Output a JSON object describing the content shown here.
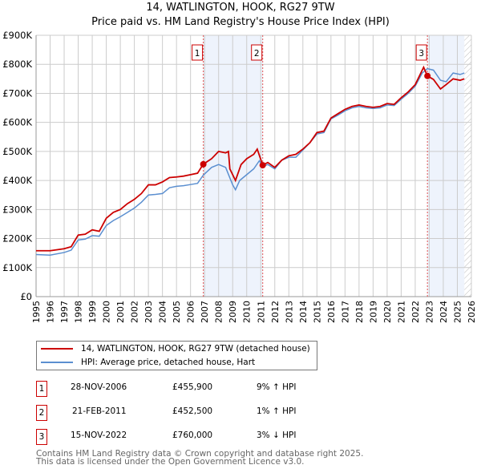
{
  "chart_data": {
    "type": "line",
    "title": "14, WATLINGTON, HOOK, RG27 9TW",
    "subtitle": "Price paid vs. HM Land Registry's House Price Index (HPI)",
    "xlim": [
      1995,
      2026
    ],
    "ylim": [
      0,
      900000
    ],
    "x_ticks": [
      "1995",
      "1996",
      "1997",
      "1998",
      "1999",
      "2000",
      "2001",
      "2002",
      "2003",
      "2004",
      "2005",
      "2006",
      "2007",
      "2008",
      "2009",
      "2010",
      "2011",
      "2012",
      "2013",
      "2014",
      "2015",
      "2016",
      "2017",
      "2018",
      "2019",
      "2020",
      "2021",
      "2022",
      "2023",
      "2024",
      "2025",
      "2026"
    ],
    "y_ticks": [
      {
        "v": 0,
        "label": "£0"
      },
      {
        "v": 100000,
        "label": "£100K"
      },
      {
        "v": 200000,
        "label": "£200K"
      },
      {
        "v": 300000,
        "label": "£300K"
      },
      {
        "v": 400000,
        "label": "£400K"
      },
      {
        "v": 500000,
        "label": "£500K"
      },
      {
        "v": 600000,
        "label": "£600K"
      },
      {
        "v": 700000,
        "label": "£700K"
      },
      {
        "v": 800000,
        "label": "£800K"
      },
      {
        "v": 900000,
        "label": "£900K"
      }
    ],
    "grid": true,
    "shaded_ranges": [
      [
        2006.9,
        2011.14
      ],
      [
        2022.87,
        2025.5
      ]
    ],
    "hatched_from": 2025.5,
    "series": [
      {
        "name": "14, WATLINGTON, HOOK, RG27 9TW (detached house)",
        "color": "#cc0000",
        "x": [
          1995,
          1996,
          1997,
          1997.5,
          1998,
          1998.5,
          1999,
          1999.5,
          2000,
          2000.5,
          2001,
          2001.5,
          2002,
          2002.5,
          2003,
          2003.5,
          2004,
          2004.5,
          2005,
          2005.5,
          2006,
          2006.5,
          2006.9,
          2007.5,
          2008,
          2008.5,
          2008.7,
          2008.8,
          2009.2,
          2009.6,
          2010,
          2010.5,
          2010.75,
          2011.14,
          2011.5,
          2012,
          2012.5,
          2013,
          2013.5,
          2014,
          2014.5,
          2015,
          2015.5,
          2016,
          2016.5,
          2017,
          2017.5,
          2018,
          2018.5,
          2019,
          2019.5,
          2020,
          2020.5,
          2021,
          2021.5,
          2022,
          2022.6,
          2022.87,
          2023.3,
          2023.8,
          2024.2,
          2024.7,
          2025.2,
          2025.5
        ],
        "y": [
          158,
          158,
          165,
          172,
          212,
          215,
          230,
          225,
          270,
          290,
          300,
          320,
          335,
          355,
          385,
          385,
          395,
          410,
          412,
          415,
          420,
          425,
          455.9,
          475,
          500,
          495,
          500,
          440,
          400,
          455,
          475,
          490,
          508,
          452.5,
          462,
          445,
          470,
          485,
          490,
          508,
          530,
          565,
          570,
          615,
          630,
          645,
          655,
          660,
          655,
          652,
          655,
          665,
          662,
          685,
          705,
          730,
          790,
          760,
          748,
          715,
          730,
          750,
          745,
          750
        ]
      },
      {
        "name": "HPI: Average price, detached house, Hart",
        "color": "#5b8fd0",
        "x": [
          1995,
          1996,
          1997,
          1997.5,
          1998,
          1998.5,
          1999,
          1999.5,
          2000,
          2000.5,
          2001,
          2001.5,
          2002,
          2002.5,
          2003,
          2003.5,
          2004,
          2004.5,
          2005,
          2005.5,
          2006,
          2006.5,
          2006.9,
          2007.5,
          2008,
          2008.5,
          2009,
          2009.2,
          2009.5,
          2010,
          2010.5,
          2010.9,
          2011.14,
          2011.5,
          2012,
          2012.5,
          2013,
          2013.5,
          2014,
          2014.5,
          2015,
          2015.5,
          2016,
          2016.5,
          2017,
          2017.5,
          2018,
          2018.5,
          2019,
          2019.5,
          2020,
          2020.5,
          2021,
          2021.5,
          2022,
          2022.5,
          2022.87,
          2023.3,
          2023.8,
          2024.2,
          2024.7,
          2025.2,
          2025.5
        ],
        "y": [
          145,
          143,
          152,
          160,
          195,
          198,
          210,
          208,
          245,
          262,
          275,
          290,
          305,
          325,
          350,
          352,
          355,
          375,
          380,
          382,
          386,
          390,
          418,
          445,
          455,
          445,
          385,
          368,
          400,
          420,
          440,
          468,
          448,
          455,
          440,
          470,
          480,
          480,
          505,
          530,
          560,
          565,
          612,
          625,
          640,
          650,
          655,
          650,
          648,
          650,
          660,
          658,
          680,
          700,
          725,
          770,
          785,
          780,
          745,
          740,
          770,
          765,
          770
        ]
      }
    ],
    "y_units": "thousands GBP",
    "sales": [
      {
        "n": "1",
        "date": "28-NOV-2006",
        "x": 2006.91,
        "price": "£455,900",
        "value": 455.9,
        "hpi": "9% ↑ HPI"
      },
      {
        "n": "2",
        "date": "21-FEB-2011",
        "x": 2011.14,
        "price": "£452,500",
        "value": 452.5,
        "hpi": "1% ↑ HPI"
      },
      {
        "n": "3",
        "date": "15-NOV-2022",
        "x": 2022.87,
        "price": "£760,000",
        "value": 760,
        "hpi": "3% ↓ HPI"
      }
    ]
  },
  "footer": {
    "line1": "Contains HM Land Registry data © Crown copyright and database right 2025.",
    "line2": "This data is licensed under the Open Government Licence v3.0."
  }
}
